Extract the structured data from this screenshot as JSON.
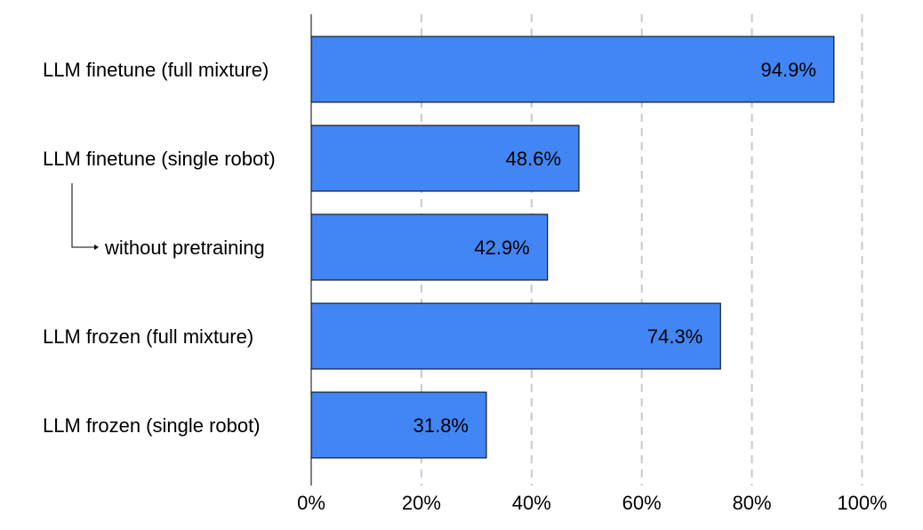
{
  "chart_data": {
    "type": "bar",
    "orientation": "horizontal",
    "categories": [
      "LLM finetune (full mixture)",
      "LLM finetune (single robot)",
      "without pretraining",
      "LLM frozen (full mixture)",
      "LLM frozen (single robot)"
    ],
    "values": [
      94.9,
      48.6,
      42.9,
      74.3,
      31.8
    ],
    "value_labels": [
      "94.9%",
      "48.6%",
      "42.9%",
      "74.3%",
      "31.8%"
    ],
    "sub_item_of": [
      null,
      null,
      1,
      null,
      null
    ],
    "xlim": [
      0,
      100
    ],
    "xticks": [
      0,
      20,
      40,
      60,
      80,
      100
    ],
    "xtick_labels": [
      "0%",
      "20%",
      "40%",
      "60%",
      "80%",
      "100%"
    ],
    "grid": "vertical dashed",
    "bar_color": "#4285f4",
    "title": "",
    "xlabel": "",
    "ylabel": ""
  }
}
